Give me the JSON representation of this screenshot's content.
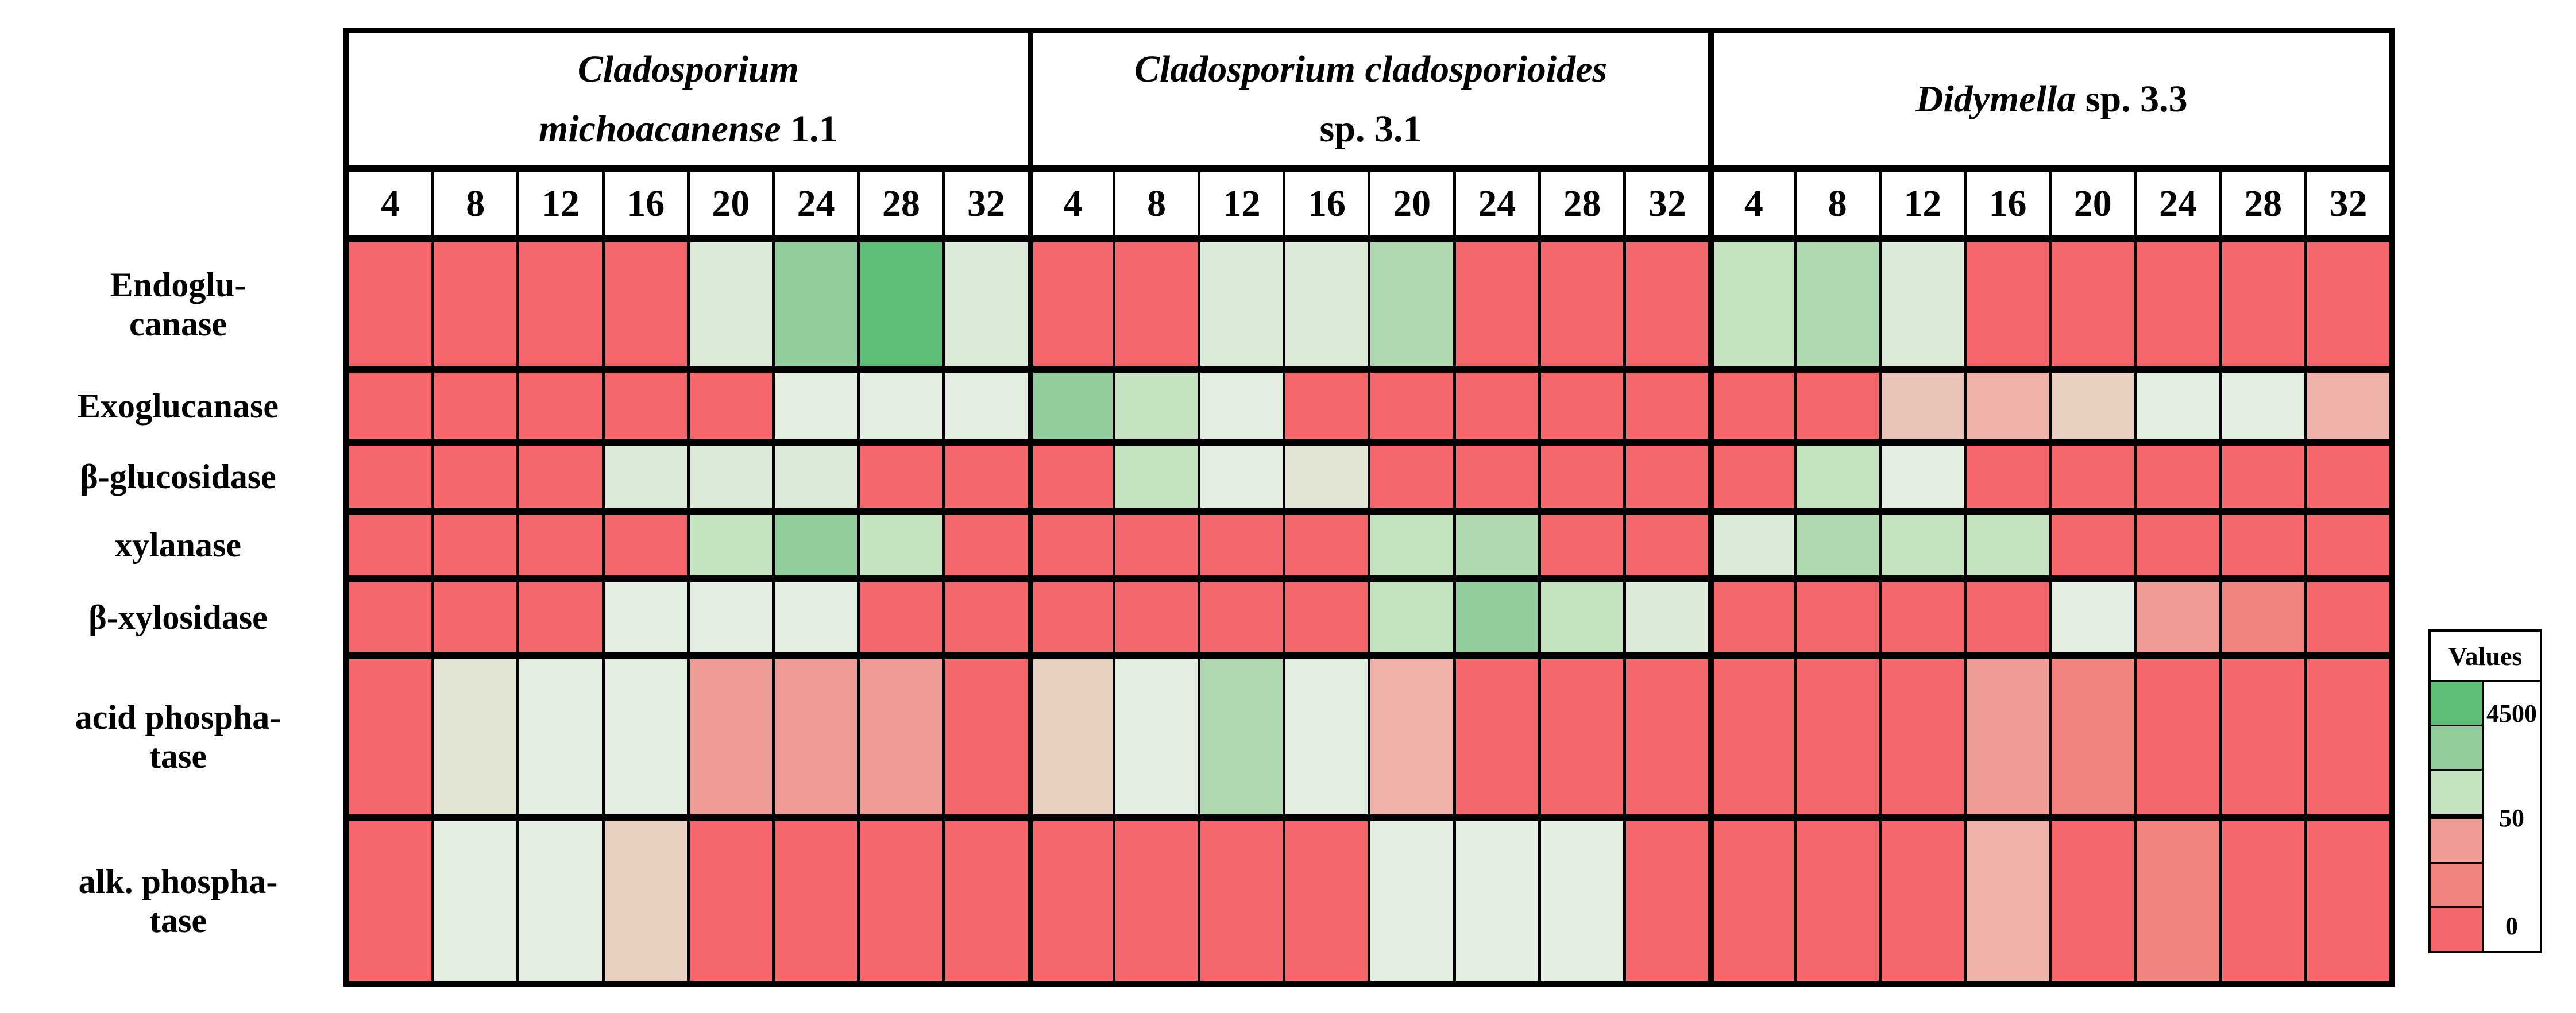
{
  "figure": {
    "kind": "enzyme-activity-heatmap",
    "row_label_lines": [
      [
        "Endoglu-",
        "canase"
      ],
      [
        "Exoglucanase"
      ],
      [
        "β-glucosidase"
      ],
      [
        "xylanase"
      ],
      [
        "β-xylosidase"
      ],
      [
        "acid phospha-",
        "tase"
      ],
      [
        "alk. phospha-",
        "tase"
      ]
    ],
    "group_header_lines": [
      {
        "lines": [
          [
            {
              "t": "Cladosporium",
              "i": 1
            }
          ],
          [
            {
              "t": "michoacanense",
              "i": 1
            },
            {
              "t": " 1.1",
              "i": 0
            }
          ]
        ]
      },
      {
        "lines": [
          [
            {
              "t": "Cladosporium cladosporioides",
              "i": 1
            }
          ],
          [
            {
              "t": "sp. 3.1",
              "i": 0
            }
          ]
        ]
      },
      {
        "lines": [
          [
            {
              "t": "Didymella",
              "i": 1
            },
            {
              "t": " sp. 3.3",
              "i": 0
            }
          ]
        ]
      }
    ]
  },
  "legend": {
    "title": "Values",
    "max_label": "4500",
    "mid_label": "50",
    "min_label": "0",
    "swatches": [
      "g6",
      "g5",
      "g3",
      "r2",
      "r3",
      "r4"
    ],
    "thick_line_after_swatch_index": 2
  },
  "chart_data": {
    "type": "heatmap",
    "title": "",
    "groups": [
      "Cladosporium michoacanense 1.1",
      "Cladosporium cladosporioides sp. 3.1",
      "Didymella sp. 3.3"
    ],
    "timepoints": [
      4,
      8,
      12,
      16,
      20,
      24,
      28,
      32
    ],
    "rows": [
      "Endoglucanase",
      "Exoglucanase",
      "β-glucosidase",
      "xylanase",
      "β-xylosidase",
      "acid phosphatase",
      "alk. phosphatase"
    ],
    "legend_scale": {
      "min": 0,
      "mid": 50,
      "max": 4500
    },
    "palette": {
      "r4": "#F5676B",
      "r3": "#F1837E",
      "r2": "#EF9C95",
      "r1": "#EEB2A9",
      "r0": "#EAC3B8",
      "w2": "#E8D1C1",
      "w1": "#E4E4D2",
      "g1": "#E2EEDF",
      "g2": "#DBEBD7",
      "g3": "#C5E3C1",
      "g4": "#AFDAB1",
      "g5": "#91CE9B",
      "g6": "#5DBE75"
    },
    "palette_order_low_to_high": [
      "r4",
      "r3",
      "r2",
      "r1",
      "r0",
      "w2",
      "w1",
      "g1",
      "g2",
      "g3",
      "g4",
      "g5",
      "g6"
    ],
    "matrix": [
      [
        "r4",
        "r4",
        "r4",
        "r4",
        "g2",
        "g5",
        "g6",
        "g2",
        "r4",
        "r4",
        "g2",
        "g2",
        "g4",
        "r4",
        "r4",
        "r4",
        "g3",
        "g4",
        "g2",
        "r4",
        "r4",
        "r4",
        "r4",
        "r4"
      ],
      [
        "r4",
        "r4",
        "r4",
        "r4",
        "r4",
        "g1",
        "g1",
        "g1",
        "g5",
        "g3",
        "g1",
        "r4",
        "r4",
        "r4",
        "r4",
        "r4",
        "r4",
        "r4",
        "r0",
        "r1",
        "w2",
        "g1",
        "g1",
        "r1"
      ],
      [
        "r4",
        "r4",
        "r4",
        "g2",
        "g2",
        "g2",
        "r4",
        "r4",
        "r4",
        "g3",
        "g1",
        "w1",
        "r4",
        "r4",
        "r4",
        "r4",
        "r4",
        "g3",
        "g1",
        "r4",
        "r4",
        "r4",
        "r4",
        "r4"
      ],
      [
        "r4",
        "r4",
        "r4",
        "r4",
        "g3",
        "g5",
        "g3",
        "r4",
        "r4",
        "r4",
        "r4",
        "r4",
        "g3",
        "g4",
        "r4",
        "r4",
        "g2",
        "g4",
        "g3",
        "g3",
        "r4",
        "r4",
        "r4",
        "r4"
      ],
      [
        "r4",
        "r4",
        "r4",
        "g1",
        "g1",
        "g1",
        "r4",
        "r4",
        "r4",
        "r4",
        "r4",
        "r4",
        "g3",
        "g5",
        "g3",
        "g2",
        "r4",
        "r4",
        "r4",
        "r4",
        "g1",
        "r2",
        "r3",
        "r4"
      ],
      [
        "r4",
        "w1",
        "g1",
        "g1",
        "r2",
        "r2",
        "r2",
        "r4",
        "w2",
        "g1",
        "g4",
        "g1",
        "r1",
        "r4",
        "r4",
        "r4",
        "r4",
        "r4",
        "r4",
        "r2",
        "r3",
        "r4",
        "r4",
        "r4"
      ],
      [
        "r4",
        "g1",
        "g1",
        "w2",
        "r4",
        "r4",
        "r4",
        "r4",
        "r4",
        "r4",
        "r4",
        "r4",
        "g1",
        "g1",
        "g1",
        "r4",
        "r4",
        "r4",
        "r4",
        "r1",
        "r4",
        "r3",
        "r4",
        "r4"
      ]
    ]
  }
}
